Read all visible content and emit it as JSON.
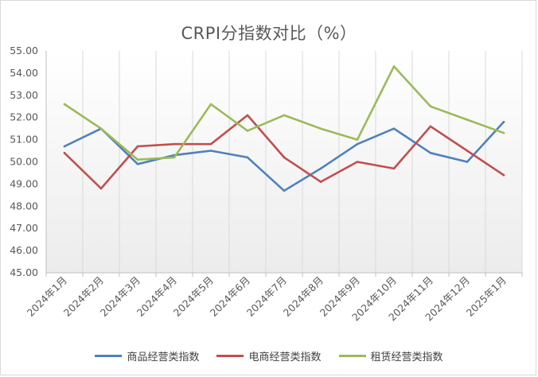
{
  "chart_data": {
    "type": "line",
    "title": "CRPI分指数对比（%）",
    "categories": [
      "2024年1月",
      "2024年2月",
      "2024年3月",
      "2024年4月",
      "2024年5月",
      "2024年6月",
      "2024年7月",
      "2024年8月",
      "2024年9月",
      "2024年10月",
      "2024年11月",
      "2024年12月",
      "2025年1月"
    ],
    "ylim": [
      45.0,
      55.0
    ],
    "yticks": [
      "45.00",
      "46.00",
      "47.00",
      "48.00",
      "49.00",
      "50.00",
      "51.00",
      "52.00",
      "53.00",
      "54.00",
      "55.00"
    ],
    "grid": true,
    "legend_position": "bottom",
    "series": [
      {
        "name": "商品经营类指数",
        "color": "#4f81bd",
        "values": [
          50.7,
          51.5,
          49.9,
          50.3,
          50.5,
          50.2,
          48.7,
          49.7,
          50.8,
          51.5,
          50.4,
          50.0,
          51.8
        ]
      },
      {
        "name": "电商经营类指数",
        "color": "#c0504d",
        "values": [
          50.4,
          48.8,
          50.7,
          50.8,
          50.8,
          52.1,
          50.2,
          49.1,
          50.0,
          49.7,
          51.6,
          50.5,
          49.4
        ]
      },
      {
        "name": "租赁经营类指数",
        "color": "#9bbb59",
        "values": [
          52.6,
          51.5,
          50.1,
          50.2,
          52.6,
          51.4,
          52.1,
          51.5,
          51.0,
          54.3,
          52.5,
          51.9,
          51.3
        ]
      }
    ]
  }
}
